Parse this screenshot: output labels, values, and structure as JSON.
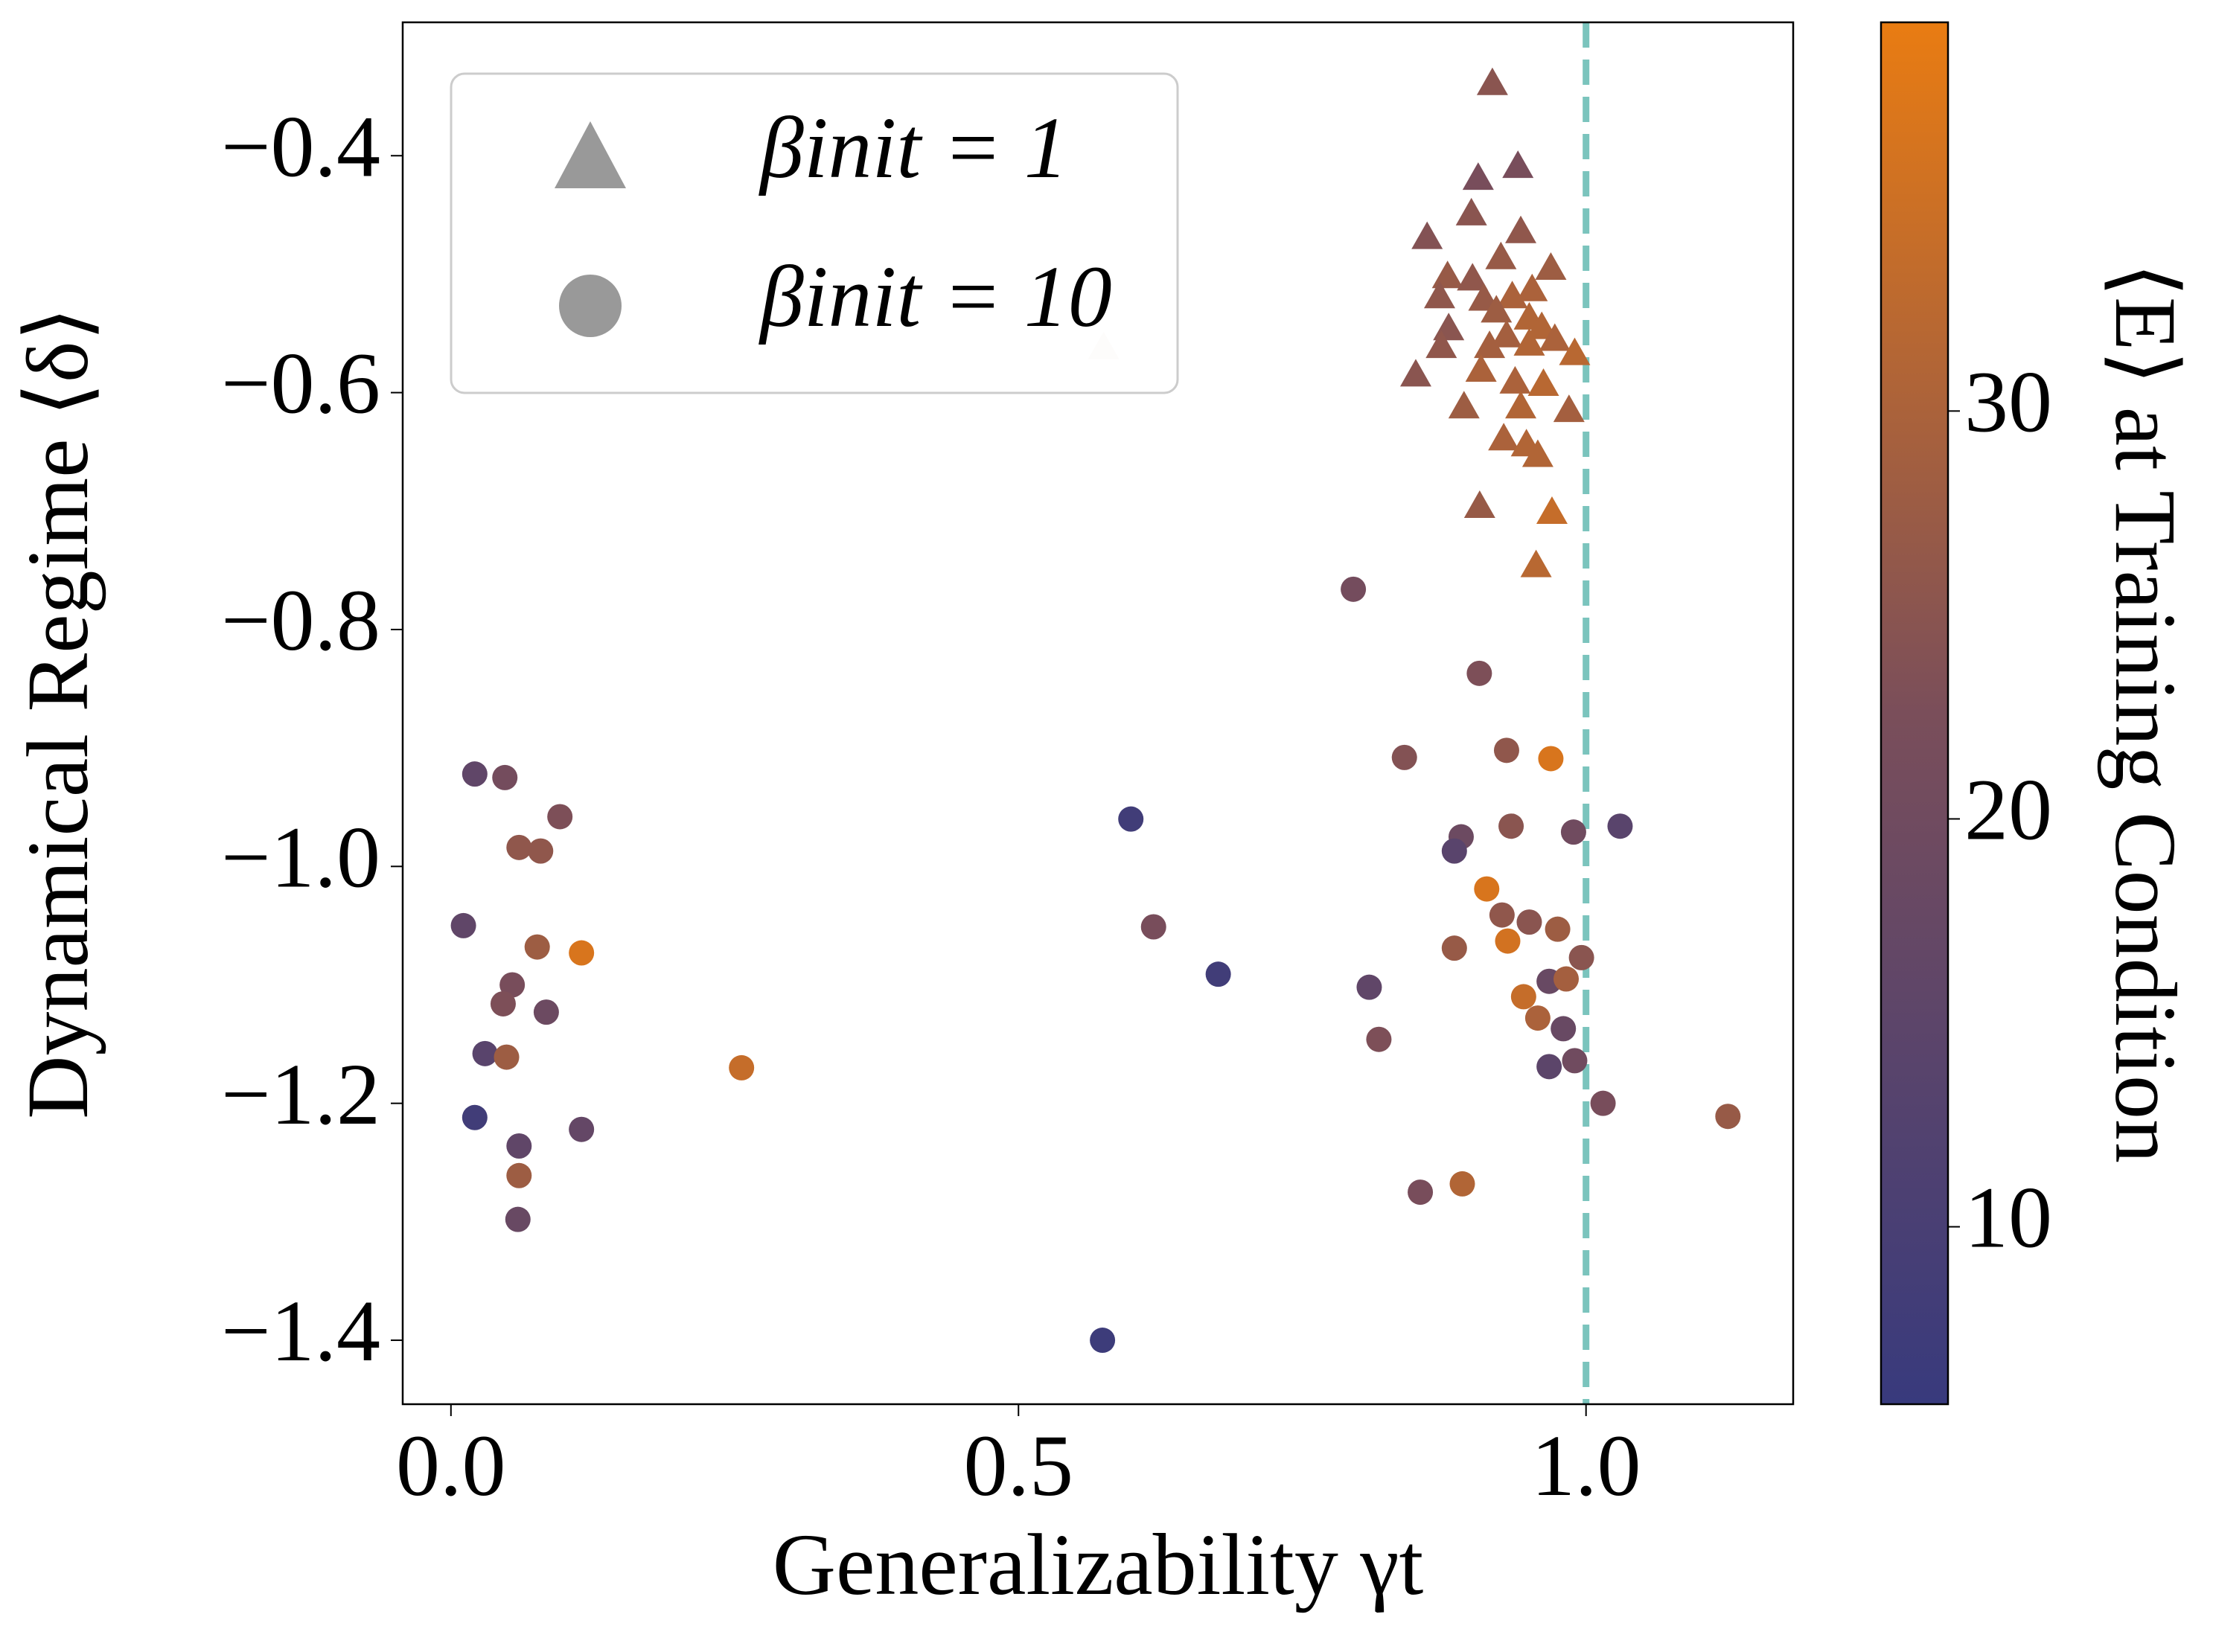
{
  "chart_data": {
    "type": "scatter",
    "xlabel": "Generalizability γt",
    "ylabel": "Dynamical Regime ⟨δ⟩",
    "xlim": [
      -0.0425,
      1.1825
    ],
    "ylim": [
      -1.454,
      -0.2874
    ],
    "xticks": [
      {
        "value": 0.0,
        "label": "0.0"
      },
      {
        "value": 0.5,
        "label": "0.5"
      },
      {
        "value": 1.0,
        "label": "1.0"
      }
    ],
    "yticks": [
      {
        "value": -0.4,
        "label": "−0.4"
      },
      {
        "value": -0.6,
        "label": "−0.6"
      },
      {
        "value": -0.8,
        "label": "−0.8"
      },
      {
        "value": -1.0,
        "label": "−1.0"
      },
      {
        "value": -1.2,
        "label": "−1.2"
      },
      {
        "value": -1.4,
        "label": "−1.4"
      }
    ],
    "vline": 1.0,
    "vline_color": "#7bc4bd",
    "colorbar": {
      "label": "⟨E⟩ at Training Condition",
      "clim": [
        5.65,
        39.53
      ],
      "ticks": [
        10,
        20,
        30
      ],
      "colormap": [
        "#383a7d",
        "#7a4e5a",
        "#e97c12"
      ]
    },
    "legend": "upper left",
    "series": [
      {
        "name": "βinit = 1",
        "marker": "triangle",
        "x": [
          0.9175,
          0.94,
          0.905,
          0.899,
          0.86,
          0.9425,
          0.925,
          0.969,
          0.878,
          0.9,
          0.871,
          0.91,
          0.935,
          0.9525,
          0.921,
          0.95,
          0.961,
          0.879,
          0.9725,
          0.93,
          0.915,
          0.8725,
          0.95,
          0.99,
          0.9075,
          0.85,
          0.9375,
          0.9625,
          0.8925,
          0.9425,
          0.985,
          0.9275,
          0.9475,
          0.9575,
          0.9063,
          0.97,
          0.956,
          0.575
        ],
        "values": [
          -0.34,
          -0.41,
          -0.42,
          -0.45,
          -0.47,
          -0.465,
          -0.487,
          -0.496,
          -0.503,
          -0.505,
          -0.52,
          -0.522,
          -0.52,
          -0.514,
          -0.532,
          -0.538,
          -0.546,
          -0.547,
          -0.556,
          -0.553,
          -0.562,
          -0.562,
          -0.56,
          -0.568,
          -0.582,
          -0.586,
          -0.592,
          -0.594,
          -0.613,
          -0.613,
          -0.616,
          -0.64,
          -0.645,
          -0.654,
          -0.697,
          -0.702,
          -0.747,
          -0.563
        ],
        "c": [
          25,
          22,
          22,
          25,
          24,
          26,
          27,
          28,
          27,
          26,
          26,
          27,
          30,
          30,
          28,
          31,
          31,
          25,
          30,
          29,
          29,
          26,
          31,
          32,
          30,
          25,
          30,
          32,
          28,
          31,
          29,
          30,
          31,
          31,
          27,
          34,
          32,
          30
        ],
        "alpha": [
          1,
          1,
          1,
          1,
          1,
          1,
          1,
          1,
          1,
          1,
          1,
          1,
          1,
          1,
          1,
          1,
          1,
          1,
          1,
          1,
          1,
          1,
          1,
          1,
          1,
          1,
          1,
          1,
          1,
          1,
          1,
          1,
          1,
          1,
          1,
          1,
          1,
          0.15
        ]
      },
      {
        "name": "βinit = 10",
        "marker": "circle",
        "x": [
          0.795,
          0.906,
          0.84,
          0.93,
          0.969,
          0.89,
          0.884,
          0.934,
          0.989,
          1.03,
          0.9125,
          0.926,
          0.95,
          0.975,
          0.931,
          0.884,
          0.996,
          0.9675,
          0.9825,
          0.809,
          0.945,
          0.9575,
          0.98,
          0.8175,
          0.99,
          0.9675,
          1.015,
          1.125,
          0.891,
          0.854,
          0.599,
          0.619,
          0.676,
          0.574,
          0.256,
          0.021,
          0.0475,
          0.096,
          0.06,
          0.079,
          0.011,
          0.076,
          0.115,
          0.054,
          0.046,
          0.084,
          0.03,
          0.049,
          0.021,
          0.115,
          0.06,
          0.06,
          0.059
        ],
        "values": [
          -0.766,
          -0.837,
          -0.908,
          -0.902,
          -0.909,
          -0.975,
          -0.987,
          -0.966,
          -0.971,
          -0.966,
          -1.019,
          -1.041,
          -1.047,
          -1.053,
          -1.063,
          -1.069,
          -1.077,
          -1.097,
          -1.095,
          -1.102,
          -1.11,
          -1.128,
          -1.137,
          -1.146,
          -1.164,
          -1.169,
          -1.2,
          -1.211,
          -1.268,
          -1.275,
          -0.96,
          -1.051,
          -1.091,
          -1.4,
          -1.17,
          -0.922,
          -0.925,
          -0.958,
          -0.984,
          -0.987,
          -1.05,
          -1.068,
          -1.073,
          -1.1,
          -1.116,
          -1.123,
          -1.158,
          -1.161,
          -1.212,
          -1.222,
          -1.236,
          -1.261,
          -1.298
        ],
        "c": [
          21,
          23,
          24,
          26,
          37,
          19,
          14,
          25,
          20,
          14,
          37,
          26,
          25,
          28,
          36,
          27,
          25,
          18,
          29,
          16,
          34,
          30,
          18,
          23,
          20,
          15,
          22,
          27,
          31,
          22,
          8,
          22,
          8,
          7,
          34,
          16,
          21,
          23,
          26,
          26,
          16,
          28,
          37,
          22,
          23,
          19,
          14,
          28,
          8,
          17,
          16,
          28,
          18
        ]
      }
    ]
  }
}
